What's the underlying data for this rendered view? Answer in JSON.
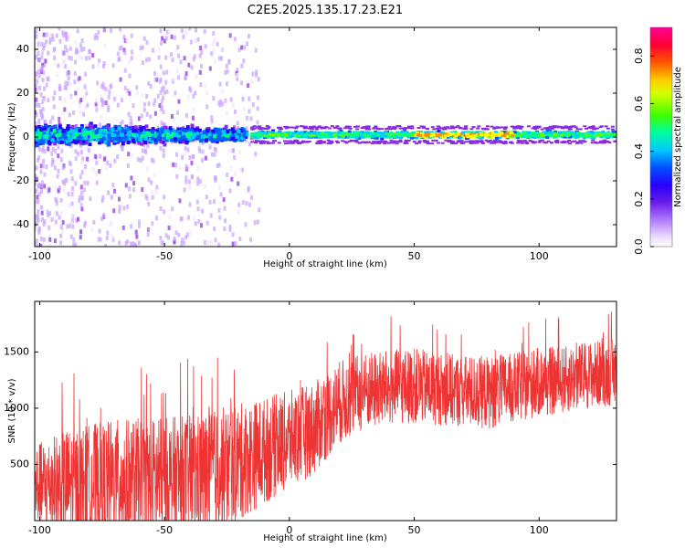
{
  "title": "C2E5.2025.135.17.23.E21",
  "chart_data": [
    {
      "type": "heatmap",
      "xlabel": "Height of straight line (km)",
      "ylabel": "Frequency (Hz)",
      "xlim": [
        -102,
        131
      ],
      "ylim": [
        -50,
        50
      ],
      "xticks": [
        -100,
        -50,
        0,
        50,
        100
      ],
      "yticks": [
        -40,
        -20,
        0,
        20,
        40
      ],
      "colorbar": {
        "label": "Normalized spectral amplitude",
        "ticks": [
          "0.0",
          "0.2",
          "0.4",
          "0.6",
          "0.8"
        ],
        "range": [
          0,
          0.92
        ],
        "colormap": [
          "#f2e6ff",
          "#c9a2ff",
          "#8a2be2",
          "#2a00ff",
          "#0060ff",
          "#00c8ff",
          "#00ff88",
          "#66ff00",
          "#ffff00",
          "#ff8800",
          "#ff0000",
          "#ff0080"
        ]
      },
      "band_center_hz": 1,
      "band_description": "energy concentrated near 0 Hz; broad scatter for heights below 0 km, narrow band above"
    },
    {
      "type": "line",
      "xlabel": "Height of straight line (km)",
      "ylabel": "SNR (10 * v/v)",
      "xlim": [
        -102,
        131
      ],
      "ylim": [
        0,
        1950
      ],
      "xticks": [
        -100,
        -50,
        0,
        50,
        100
      ],
      "yticks": [
        500,
        1000,
        1500
      ],
      "series_color": "#ee3333",
      "trend": {
        "x": [
          -102,
          -90,
          -80,
          -70,
          -60,
          -50,
          -40,
          -30,
          -20,
          -10,
          0,
          10,
          20,
          30,
          40,
          50,
          60,
          70,
          80,
          90,
          100,
          110,
          120,
          131
        ],
        "mean": [
          300,
          320,
          330,
          340,
          350,
          360,
          380,
          430,
          520,
          620,
          720,
          820,
          1050,
          1150,
          1180,
          1200,
          1170,
          1150,
          1140,
          1180,
          1230,
          1250,
          1300,
          1320
        ],
        "amplitude": [
          300,
          400,
          420,
          450,
          450,
          450,
          450,
          450,
          420,
          380,
          350,
          330,
          300,
          280,
          270,
          270,
          260,
          260,
          260,
          250,
          250,
          240,
          240,
          240
        ]
      }
    }
  ]
}
